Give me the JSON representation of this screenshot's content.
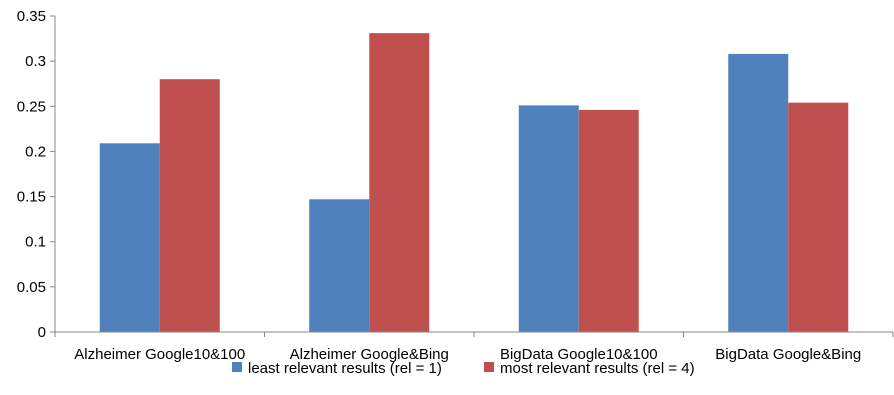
{
  "chart_data": {
    "type": "bar",
    "title": "",
    "xlabel": "",
    "ylabel": "",
    "ylim": [
      0,
      0.35
    ],
    "yticks": [
      "0",
      "0.05",
      "0.1",
      "0.15",
      "0.2",
      "0.25",
      "0.3",
      "0.35"
    ],
    "grid": false,
    "legend_position": "bottom",
    "categories": [
      "Alzheimer Google10&100",
      "Alzheimer Google&Bing",
      "BigData Google10&100",
      "BigData Google&Bing"
    ],
    "series": [
      {
        "name": "least relevant results (rel = 1)",
        "color": "#4f81bd",
        "values": [
          0.209,
          0.147,
          0.251,
          0.308
        ]
      },
      {
        "name": "most relevant results (rel = 4)",
        "color": "#c0504d",
        "values": [
          0.28,
          0.331,
          0.246,
          0.254
        ]
      }
    ]
  }
}
